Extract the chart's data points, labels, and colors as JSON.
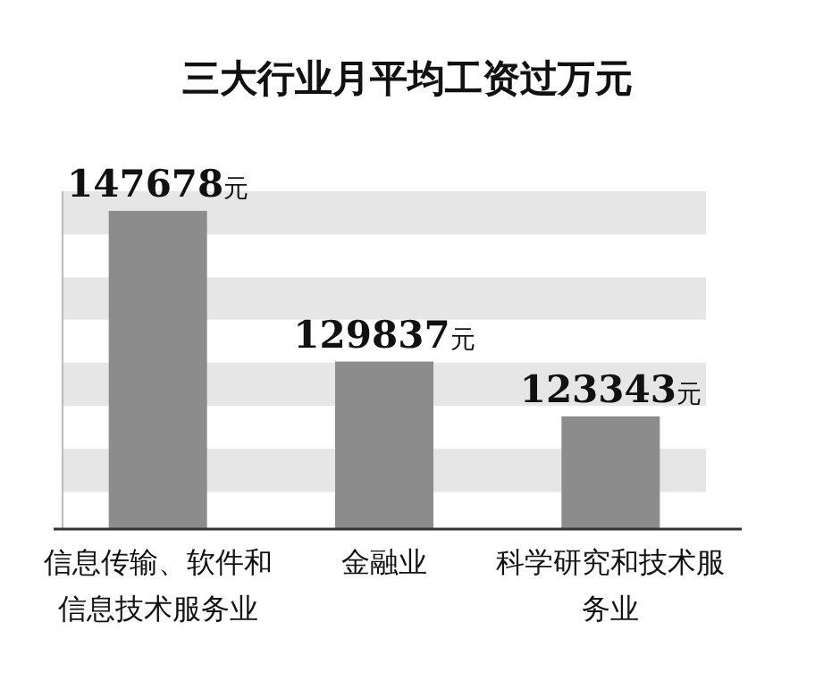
{
  "chart_data": {
    "type": "bar",
    "title": "三大行业月平均工资过万元",
    "categories": [
      "信息传输、软件和信息技术服务业",
      "金融业",
      "科学研究和技术服务业"
    ],
    "values": [
      147678,
      129837,
      123343
    ],
    "value_labels": [
      "147678元",
      "129837元",
      "123343元"
    ],
    "color": "#8c8c8c",
    "ylim": [
      110000,
      150000
    ],
    "bands": [
      {
        "axis": "y",
        "from": 114400,
        "to": 119500,
        "color": "#e6e6e6"
      },
      {
        "axis": "y",
        "from": 124600,
        "to": 129700,
        "color": "#e6e6e6"
      },
      {
        "axis": "y",
        "from": 134800,
        "to": 139800,
        "color": "#e6e6e6"
      },
      {
        "axis": "y",
        "from": 144900,
        "to": 150000,
        "color": "#e6e6e6"
      }
    ]
  }
}
